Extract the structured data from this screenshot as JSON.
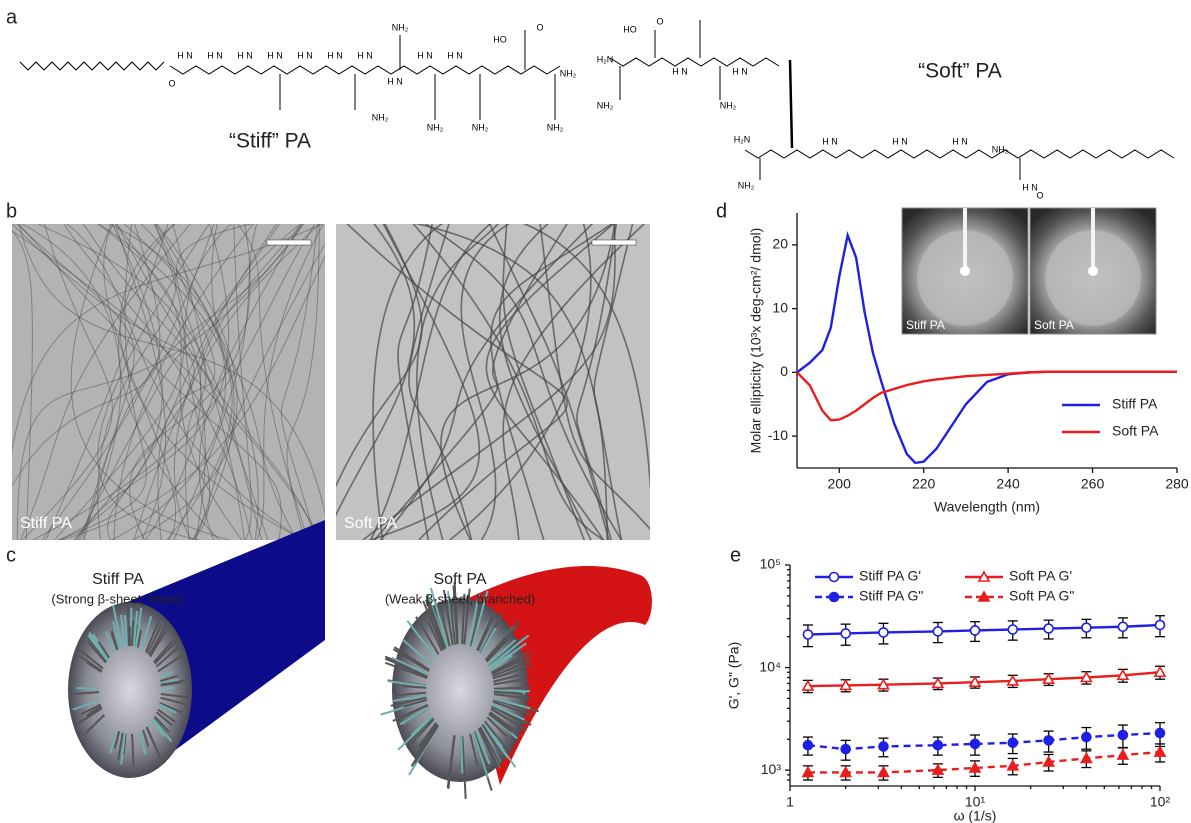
{
  "panel_labels": [
    "a",
    "b",
    "c",
    "d",
    "e"
  ],
  "molecules": {
    "stiff": {
      "name": "“Stiff” PA",
      "labels": [
        "O",
        "H N",
        "H N",
        "H N",
        "H N",
        "H N",
        "H N",
        "H N",
        "H N",
        "H N",
        "H N",
        "NH₂",
        "NH₂",
        "NH₂",
        "NH₂",
        "NH₂",
        "HO",
        "O",
        "NH₂"
      ]
    },
    "soft": {
      "name": "“Soft” PA",
      "labels": [
        "HO",
        "O",
        "H₂N",
        "NH₂",
        "NH₂",
        "H N",
        "H N",
        "H₂N",
        "NH₂",
        "H N",
        "H N",
        "H N",
        "NH₂",
        "H N",
        "O"
      ]
    }
  },
  "micrographs": [
    {
      "label": "Stiff PA"
    },
    {
      "label": "Soft PA"
    }
  ],
  "models": [
    {
      "name": "Stiff PA",
      "description": "(Strong β-sheet, linear)",
      "color": "#0c0c8a"
    },
    {
      "name": "Soft PA",
      "description": "(Weak β-sheet, branched)",
      "color": "#d41414"
    }
  ],
  "chart_data": [
    {
      "type": "line",
      "x": [
        190,
        193,
        196,
        198,
        200,
        202,
        204,
        206,
        208,
        210,
        213,
        216,
        218,
        220,
        223,
        226,
        230,
        235,
        240,
        245,
        250,
        260,
        270,
        280
      ],
      "series": [
        {
          "name": "Stiff PA",
          "color": "#1f1fe6",
          "values": [
            0,
            1.5,
            3.5,
            7,
            15,
            21.5,
            18,
            9.5,
            3,
            -1.5,
            -8,
            -12.8,
            -14.2,
            -14,
            -12,
            -9,
            -5,
            -1.5,
            -0.3,
            0,
            0.1,
            0.1,
            0.1,
            0.1
          ]
        },
        {
          "name": "Soft PA",
          "color": "#ea1c1c",
          "values": [
            0,
            -2,
            -6,
            -7.5,
            -7.4,
            -6.8,
            -6,
            -5,
            -4,
            -3.2,
            -2.6,
            -2,
            -1.7,
            -1.4,
            -1.1,
            -0.9,
            -0.6,
            -0.4,
            -0.2,
            0,
            0.1,
            0.1,
            0.1,
            0.1
          ]
        }
      ],
      "xlabel": "Wavelength (nm)",
      "ylabel": "Molar ellipticity (10³x deg-cm²/ dmol)",
      "xlim": [
        190,
        280
      ],
      "ylim": [
        -15,
        25
      ],
      "xticks": [
        200,
        220,
        240,
        260,
        280
      ],
      "yticks": [
        -10,
        0,
        10,
        20
      ],
      "legend": "right",
      "inset_labels": [
        "Stiff PA",
        "Soft PA"
      ]
    },
    {
      "type": "line",
      "log_x": true,
      "log_y": true,
      "x": [
        1.25,
        2,
        3.2,
        6.3,
        10,
        16,
        25,
        40,
        63,
        100
      ],
      "series": [
        {
          "name": "Stiff PA G'",
          "color": "#1f1fe6",
          "marker": "circle",
          "filled": false,
          "dashed": false,
          "values": [
            21000,
            21500,
            22000,
            22500,
            23000,
            23500,
            24000,
            24500,
            25000,
            26000
          ],
          "errors": [
            5000,
            5000,
            5000,
            5000,
            5000,
            5000,
            5000,
            5000,
            5500,
            6000
          ]
        },
        {
          "name": "Stiff PA G\"",
          "color": "#1f1fe6",
          "marker": "circle",
          "filled": true,
          "dashed": true,
          "values": [
            1750,
            1600,
            1700,
            1750,
            1800,
            1850,
            1950,
            2100,
            2200,
            2300
          ],
          "errors": [
            350,
            350,
            350,
            350,
            400,
            400,
            450,
            500,
            550,
            600
          ]
        },
        {
          "name": "Soft PA G'",
          "color": "#ea1c1c",
          "marker": "triangle",
          "filled": false,
          "dashed": false,
          "values": [
            6600,
            6700,
            6800,
            7000,
            7200,
            7400,
            7700,
            8000,
            8400,
            9000
          ],
          "errors": [
            900,
            900,
            900,
            900,
            900,
            1000,
            1000,
            1100,
            1200,
            1300
          ]
        },
        {
          "name": "Soft PA G\"",
          "color": "#ea1c1c",
          "marker": "triangle",
          "filled": true,
          "dashed": true,
          "values": [
            950,
            950,
            950,
            1000,
            1050,
            1100,
            1200,
            1300,
            1400,
            1500
          ],
          "errors": [
            150,
            150,
            150,
            150,
            180,
            200,
            220,
            240,
            260,
            300
          ]
        }
      ],
      "xlabel": "ω (1/s)",
      "ylabel": "G', G\" (Pa)",
      "xlim": [
        1,
        100
      ],
      "ylim": [
        700,
        100000
      ],
      "xticks": [
        1,
        {
          "value": 10,
          "label": "10¹"
        },
        {
          "value": 100,
          "label": "10²"
        }
      ],
      "yticks": [
        {
          "value": 1000,
          "label": "10³"
        },
        {
          "value": 10000,
          "label": "10⁴"
        },
        {
          "value": 100000,
          "label": "10⁵"
        }
      ],
      "legend": "top"
    }
  ]
}
